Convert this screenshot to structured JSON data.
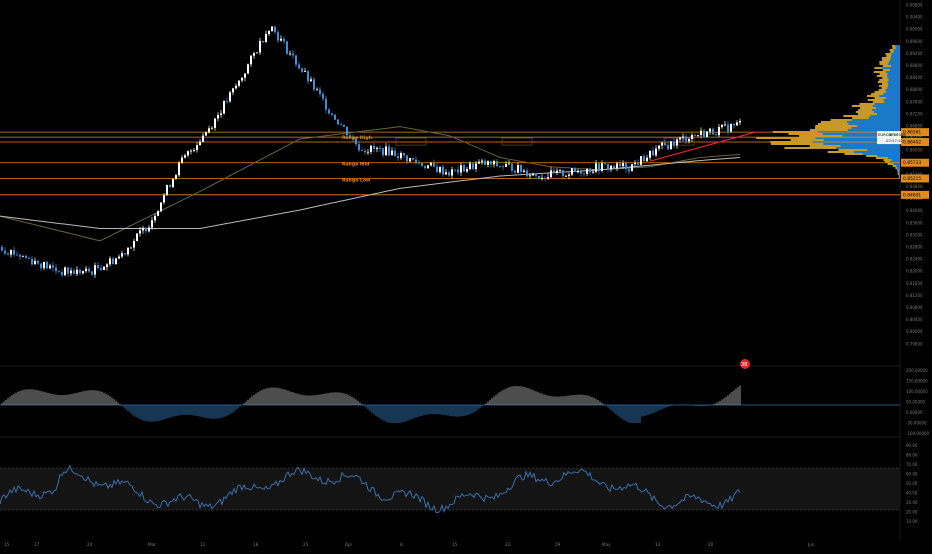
{
  "colors": {
    "background": "#000000",
    "candle_up": "#ffffff",
    "candle_down": "#3d8fd6",
    "ma_fast": "#6b6238",
    "ma_slow": "#b9b9b9",
    "level": "#e08b1a",
    "trendline": "#e0262c",
    "volume_profile_a": "#1c78c8",
    "volume_profile_b": "#c7992b",
    "osc_up": "#9a9a9a",
    "osc_down": "#2e6ca8",
    "rsi_line": "#3b78b8",
    "axis_text": "#7a7a7a"
  },
  "price_axis": {
    "ticks": [
      "0.90800",
      "0.90400",
      "0.90000",
      "0.89600",
      "0.89200",
      "0.88800",
      "0.88400",
      "0.88000",
      "0.87600",
      "0.87200",
      "0.86800",
      "0.86400",
      "0.86000",
      "0.85600",
      "0.85200",
      "0.84800",
      "0.84400",
      "0.84000",
      "0.83600",
      "0.83200",
      "0.82800",
      "0.82400",
      "0.82000",
      "0.81600",
      "0.81200",
      "0.80800",
      "0.80400",
      "0.80000",
      "0.79600"
    ],
    "current_price_tag": "0.86561",
    "symbol_tag_line1": "EURGBP",
    "symbol_tag_price": "0.86586",
    "symbol_tag_countdown": "03:57:42",
    "level_tags": [
      "0.86402",
      "0.85733",
      "0.85215",
      "0.84691"
    ]
  },
  "time_axis": {
    "labels": [
      "15",
      "17",
      "24",
      "Mar",
      "11",
      "18",
      "25",
      "Apr",
      "8",
      "15",
      "22",
      "29",
      "May",
      "13",
      "20",
      "Jun"
    ]
  },
  "levels": [
    {
      "name": "top",
      "price": 0.8672
    },
    {
      "name": "current",
      "price": 0.8656
    },
    {
      "name": "range-high",
      "price": 0.864,
      "label": "Range High"
    },
    {
      "name": "range-mid",
      "price": 0.8573,
      "label": "Range Mid"
    },
    {
      "name": "range-low",
      "price": 0.8522,
      "label": "Range Low"
    },
    {
      "name": "low",
      "price": 0.8469
    }
  ],
  "macd": {
    "ticks": [
      "200.00000",
      "150.00000",
      "100.00000",
      "50.00000",
      "0.00000",
      "-50.00000",
      "-100.00000"
    ],
    "badge": "38"
  },
  "rsi": {
    "ticks": [
      "90.00",
      "80.00",
      "70.00",
      "60.00",
      "50.00",
      "40.00",
      "30.00",
      "20.00",
      "10.00"
    ]
  },
  "chart_data": {
    "type": "candlestick",
    "symbol": "EURGBP",
    "price_range": [
      0.796,
      0.91
    ],
    "last_price": 0.86586,
    "series": [
      {
        "name": "price_path",
        "x": [
          0,
          30,
          60,
          90,
          120,
          150,
          180,
          210,
          240,
          270,
          300,
          330,
          360,
          390,
          420,
          450,
          480,
          510,
          540,
          570,
          600,
          630,
          660,
          690,
          720,
          740
        ],
        "y": [
          0.83,
          0.826,
          0.822,
          0.822,
          0.827,
          0.838,
          0.857,
          0.869,
          0.884,
          0.902,
          0.888,
          0.874,
          0.862,
          0.861,
          0.857,
          0.854,
          0.857,
          0.856,
          0.853,
          0.854,
          0.856,
          0.856,
          0.862,
          0.866,
          0.868,
          0.87
        ]
      }
    ],
    "moving_averages": {
      "fast": {
        "x": [
          0,
          100,
          200,
          300,
          400,
          450,
          500,
          550,
          600,
          650,
          700,
          740
        ],
        "y": [
          0.84,
          0.832,
          0.848,
          0.865,
          0.869,
          0.866,
          0.859,
          0.856,
          0.855,
          0.856,
          0.859,
          0.86
        ]
      },
      "slow": {
        "x": [
          0,
          100,
          200,
          300,
          400,
          500,
          600,
          700,
          740
        ],
        "y": [
          0.84,
          0.836,
          0.836,
          0.842,
          0.849,
          0.853,
          0.855,
          0.858,
          0.859
        ]
      }
    },
    "annotations": [
      "Range High",
      "Range Mid",
      "Range Low"
    ]
  }
}
